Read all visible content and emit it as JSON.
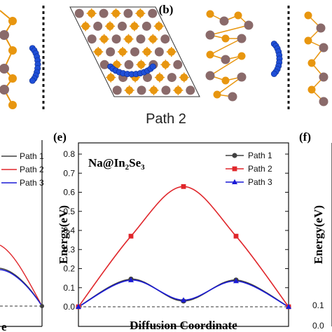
{
  "figure": {
    "top_label_b": "(b)",
    "path_caption": "Path 2",
    "label_e": "(e)",
    "label_f": "(f)"
  },
  "left_chart": {
    "legend": [
      "Path 1",
      "Path 2",
      "Path 3"
    ],
    "xlabel_fragment": "e"
  },
  "right_chart": {
    "ylabel": "Energy(eV)",
    "yticks_visible": [
      "0.0",
      "0.1"
    ]
  },
  "colors": {
    "path1": "#404040",
    "path2": "#e0262b",
    "path3": "#1a1ad6",
    "atom_orange": "#e8960f",
    "atom_brown": "#8a6a6a",
    "na_blue": "#1f4fd8"
  },
  "chart_data": {
    "type": "line",
    "title_parts": {
      "a": "Na@In",
      "b": "2",
      "c": "Se",
      "d": "3"
    },
    "xlabel": "Diffusion Coordinate",
    "ylabel": "Energy(eV)",
    "ylim": [
      0,
      0.8
    ],
    "yticks": [
      0.0,
      0.1,
      0.2,
      0.3,
      0.4,
      0.5,
      0.6,
      0.7,
      0.8
    ],
    "ytick_labels": [
      "0.0",
      "0.1",
      "0.2",
      "0.3",
      "0.4",
      "0.5",
      "0.6",
      "0.7",
      "0.8"
    ],
    "x": [
      0,
      1,
      2,
      3,
      4
    ],
    "legend_position": "top-right",
    "series": [
      {
        "name": "Path 1",
        "marker": "circle",
        "color": "#404040",
        "values": [
          0.0,
          0.145,
          0.03,
          0.14,
          0.0
        ]
      },
      {
        "name": "Path 2",
        "marker": "square",
        "color": "#e0262b",
        "values": [
          0.0,
          0.37,
          0.63,
          0.37,
          0.0
        ]
      },
      {
        "name": "Path 3",
        "marker": "triangle",
        "color": "#1a1ad6",
        "values": [
          0.0,
          0.14,
          0.035,
          0.135,
          0.0
        ]
      }
    ]
  }
}
